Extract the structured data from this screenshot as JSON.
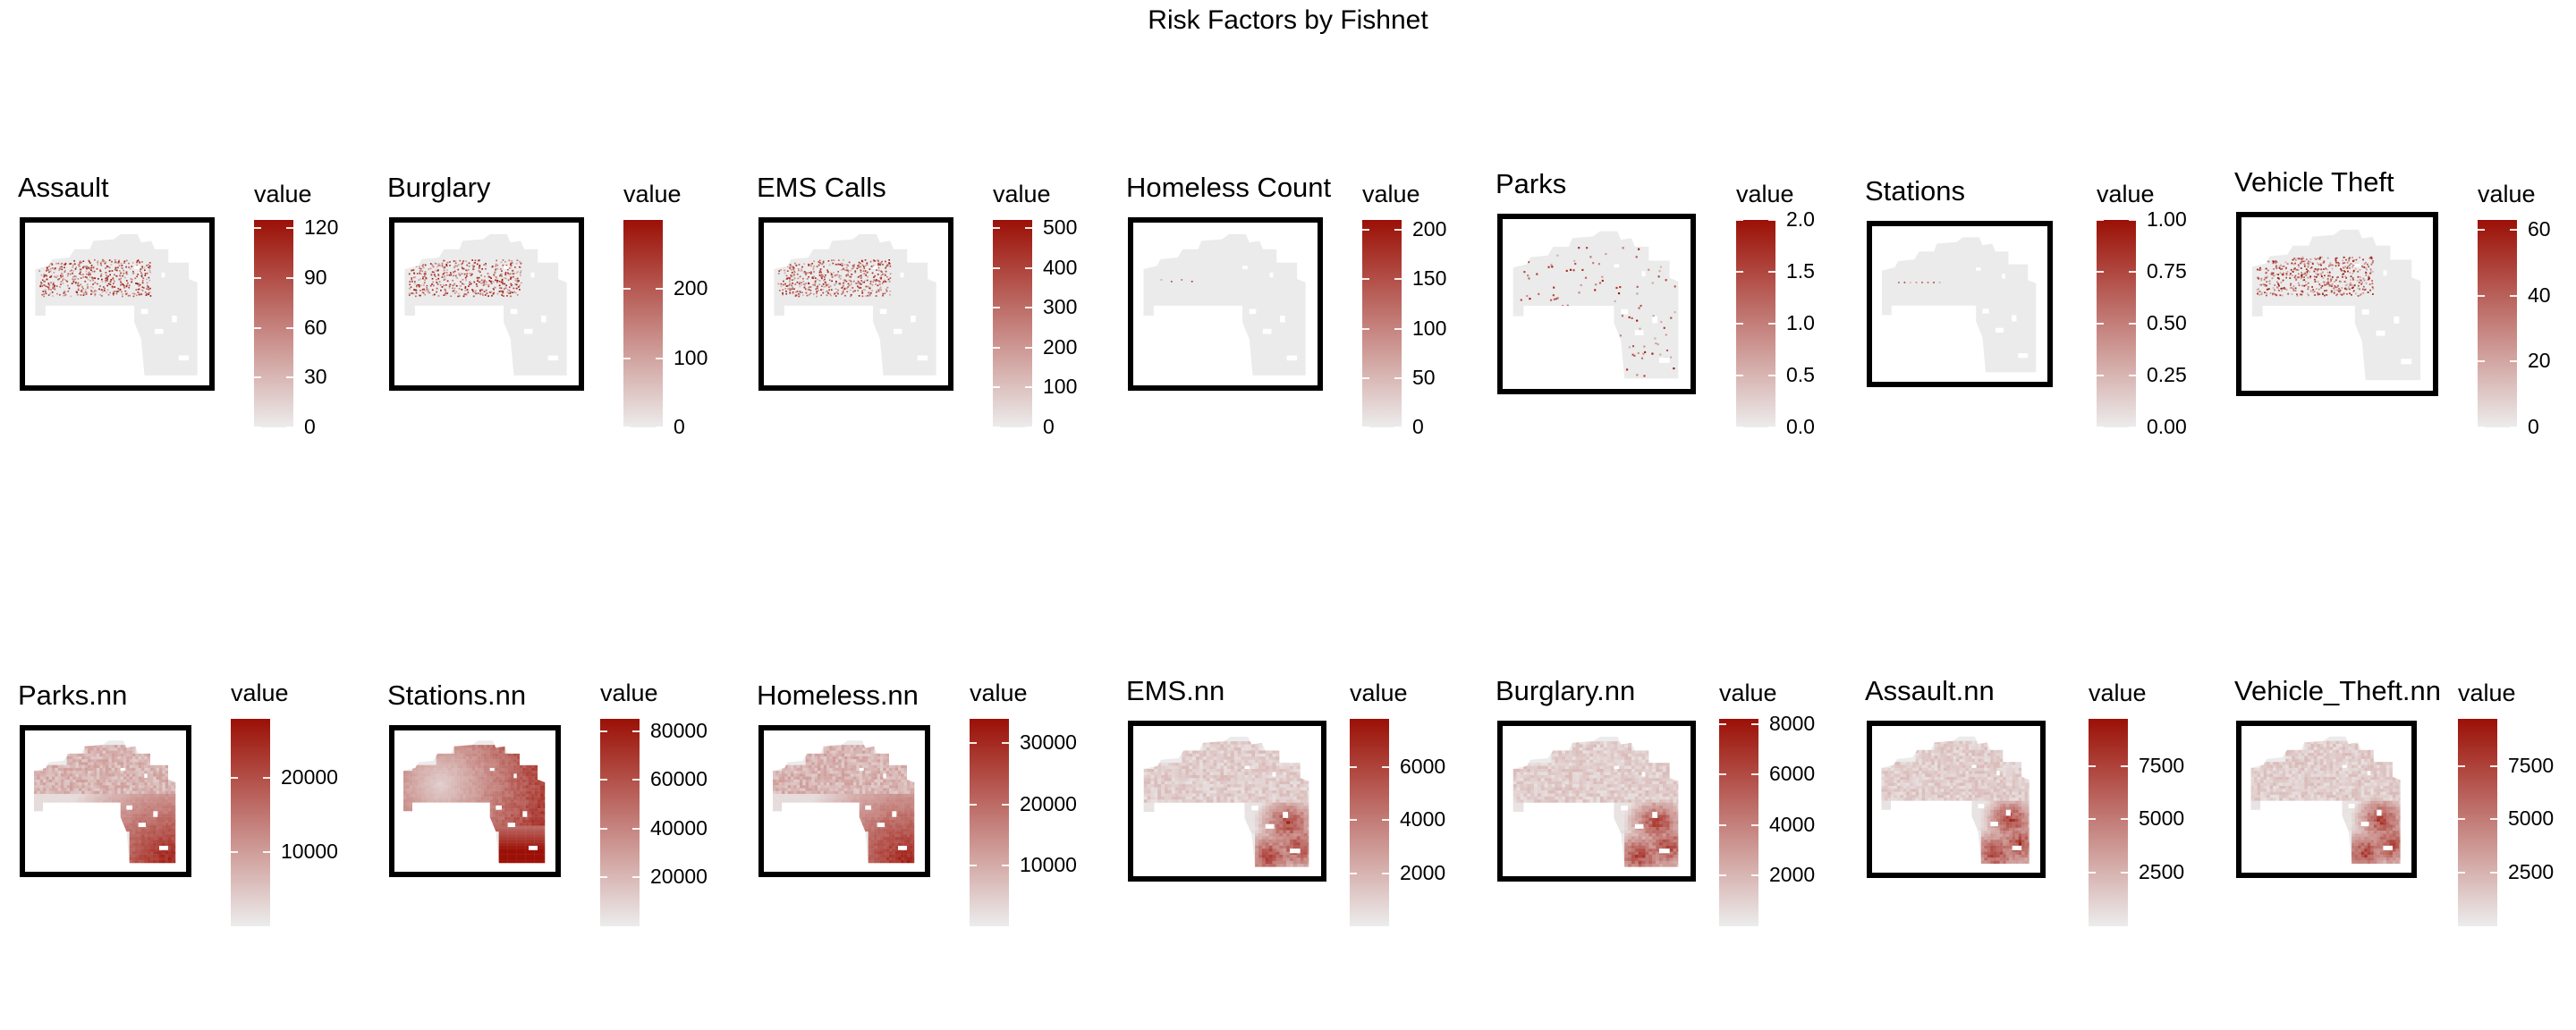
{
  "title": "Risk Factors by Fishnet",
  "colors": {
    "low": "#ececec",
    "high": "#9b1006",
    "base": "#ebebeb",
    "frame": "#000000"
  },
  "chart_data": [
    {
      "type": "heatmap",
      "title": "Assault",
      "legend_title": "value",
      "kind": "points",
      "range": [
        0,
        125
      ],
      "ticks": [
        0,
        30,
        60,
        90,
        120
      ],
      "tick_labels": [
        "0",
        "30",
        "60",
        "90",
        "120"
      ]
    },
    {
      "type": "heatmap",
      "title": "Burglary",
      "legend_title": "value",
      "kind": "points",
      "range": [
        0,
        300
      ],
      "ticks": [
        0,
        100,
        200
      ],
      "tick_labels": [
        "0",
        "100",
        "200"
      ]
    },
    {
      "type": "heatmap",
      "title": "EMS Calls",
      "legend_title": "value",
      "kind": "points",
      "range": [
        0,
        520
      ],
      "ticks": [
        0,
        100,
        200,
        300,
        400,
        500
      ],
      "tick_labels": [
        "0",
        "100",
        "200",
        "300",
        "400",
        "500"
      ]
    },
    {
      "type": "heatmap",
      "title": "Homeless Count",
      "legend_title": "value",
      "kind": "points-sparse",
      "range": [
        0,
        210
      ],
      "ticks": [
        0,
        50,
        100,
        150,
        200
      ],
      "tick_labels": [
        "0",
        "50",
        "100",
        "150",
        "200"
      ]
    },
    {
      "type": "heatmap",
      "title": "Parks",
      "legend_title": "value",
      "kind": "points-parks",
      "range": [
        0,
        2
      ],
      "ticks": [
        0,
        0.5,
        1,
        1.5,
        2
      ],
      "tick_labels": [
        "0.0",
        "0.5",
        "1.0",
        "1.5",
        "2.0"
      ]
    },
    {
      "type": "heatmap",
      "title": "Stations",
      "legend_title": "value",
      "kind": "points-row",
      "range": [
        0,
        1
      ],
      "ticks": [
        0,
        0.25,
        0.5,
        0.75,
        1
      ],
      "tick_labels": [
        "0.00",
        "0.25",
        "0.50",
        "0.75",
        "1.00"
      ]
    },
    {
      "type": "heatmap",
      "title": "Vehicle Theft",
      "legend_title": "value",
      "kind": "points",
      "range": [
        0,
        63
      ],
      "ticks": [
        0,
        20,
        40,
        60
      ],
      "tick_labels": [
        "0",
        "20",
        "40",
        "60"
      ]
    },
    {
      "type": "heatmap",
      "title": "Parks.nn",
      "legend_title": "value",
      "kind": "smooth-sw",
      "range": [
        0,
        28000
      ],
      "ticks": [
        10000,
        20000
      ],
      "tick_labels": [
        "10000",
        "20000"
      ]
    },
    {
      "type": "heatmap",
      "title": "Stations.nn",
      "legend_title": "value",
      "kind": "smooth-stations",
      "range": [
        0,
        85000
      ],
      "ticks": [
        20000,
        40000,
        60000,
        80000
      ],
      "tick_labels": [
        "20000",
        "40000",
        "60000",
        "80000"
      ]
    },
    {
      "type": "heatmap",
      "title": "Homeless.nn",
      "legend_title": "value",
      "kind": "smooth-sw",
      "range": [
        0,
        34000
      ],
      "ticks": [
        10000,
        20000,
        30000
      ],
      "tick_labels": [
        "10000",
        "20000",
        "30000"
      ]
    },
    {
      "type": "heatmap",
      "title": "EMS.nn",
      "legend_title": "value",
      "kind": "smooth-south",
      "range": [
        0,
        7800
      ],
      "ticks": [
        2000,
        4000,
        6000
      ],
      "tick_labels": [
        "2000",
        "4000",
        "6000"
      ]
    },
    {
      "type": "heatmap",
      "title": "Burglary.nn",
      "legend_title": "value",
      "kind": "smooth-south",
      "range": [
        0,
        8200
      ],
      "ticks": [
        2000,
        4000,
        6000,
        8000
      ],
      "tick_labels": [
        "2000",
        "4000",
        "6000",
        "8000"
      ]
    },
    {
      "type": "heatmap",
      "title": "Assault.nn",
      "legend_title": "value",
      "kind": "smooth-south",
      "range": [
        0,
        9700
      ],
      "ticks": [
        2500,
        5000,
        7500
      ],
      "tick_labels": [
        "2500",
        "5000",
        "7500"
      ]
    },
    {
      "type": "heatmap",
      "title": "Vehicle_Theft.nn",
      "legend_title": "value",
      "kind": "smooth-south",
      "range": [
        0,
        9700
      ],
      "ticks": [
        2500,
        5000,
        7500
      ],
      "tick_labels": [
        "2500",
        "5000",
        "7500"
      ]
    }
  ]
}
